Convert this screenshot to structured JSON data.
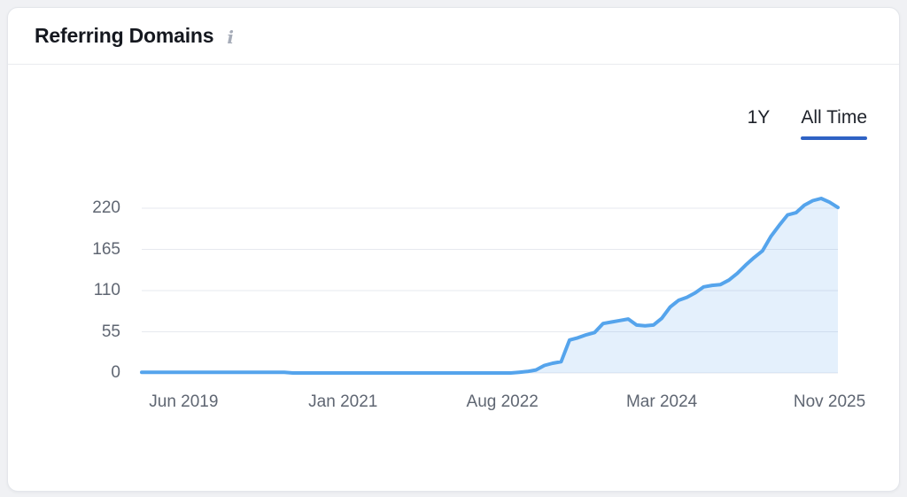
{
  "page": {
    "background_color": "#f0f1f4"
  },
  "header": {
    "title": "Referring Domains",
    "info_icon": "i"
  },
  "tabs": {
    "items": [
      {
        "label": "1Y",
        "selected": false
      },
      {
        "label": "All Time",
        "selected": true
      }
    ],
    "underline_color": "#2f62c4"
  },
  "chart_data": {
    "type": "area",
    "series_name": "Referring Domains",
    "x_unit": "month",
    "x_start": "2019-01",
    "x_end": "2025-12",
    "values": [
      1,
      1,
      1,
      1,
      1,
      1,
      1,
      1,
      1,
      1,
      1,
      1,
      1,
      1,
      1,
      1,
      1,
      1,
      0,
      0,
      0,
      0,
      0,
      0,
      0,
      0,
      0,
      0,
      0,
      0,
      0,
      0,
      0,
      0,
      0,
      0,
      0,
      0,
      0,
      0,
      0,
      0,
      0,
      0,
      0,
      1,
      2,
      4,
      10,
      13,
      15,
      44,
      47,
      51,
      54,
      66,
      68,
      70,
      72,
      64,
      63,
      64,
      73,
      88,
      97,
      101,
      107,
      115,
      117,
      118,
      124,
      133,
      144,
      154,
      163,
      182,
      197,
      211,
      214,
      224,
      230,
      233,
      228,
      221
    ],
    "x_ticks": [
      {
        "label": "Jun 2019",
        "index": 5
      },
      {
        "label": "Jan 2021",
        "index": 24
      },
      {
        "label": "Aug 2022",
        "index": 43
      },
      {
        "label": "Mar 2024",
        "index": 62
      },
      {
        "label": "Nov 2025",
        "index": 82
      }
    ],
    "y_ticks": [
      0,
      55,
      110,
      165,
      220
    ],
    "ylim": [
      0,
      240
    ],
    "grid": true,
    "legend": "none",
    "line_color": "#55a4ec",
    "fill_color": "rgba(85,164,236,0.16)",
    "grid_color": "#e7e9ef",
    "axis_label_color": "#5f6672"
  }
}
